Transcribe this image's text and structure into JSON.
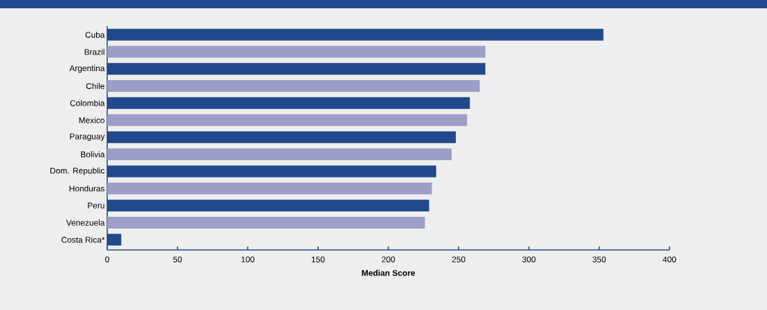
{
  "chart_data": {
    "type": "bar",
    "orientation": "horizontal",
    "xlabel": "Median Score",
    "categories": [
      "Cuba",
      "Brazil",
      "Argentina",
      "Chile",
      "Colombia",
      "Mexico",
      "Paraguay",
      "Bolivia",
      "Dom. Republic",
      "Honduras",
      "Peru",
      "Venezuela",
      "Costa Rica*"
    ],
    "values": [
      353,
      269,
      269,
      265,
      258,
      256,
      248,
      245,
      234,
      231,
      229,
      226,
      10
    ],
    "colors": [
      "#22498c",
      "#9c9ec8",
      "#22498c",
      "#9c9ec8",
      "#22498c",
      "#9c9ec8",
      "#22498c",
      "#9c9ec8",
      "#22498c",
      "#9c9ec8",
      "#22498c",
      "#9c9ec8",
      "#22498c"
    ],
    "xlim": [
      0,
      400
    ],
    "xticks": [
      0,
      50,
      100,
      150,
      200,
      250,
      300,
      350,
      400
    ],
    "grid": false
  }
}
